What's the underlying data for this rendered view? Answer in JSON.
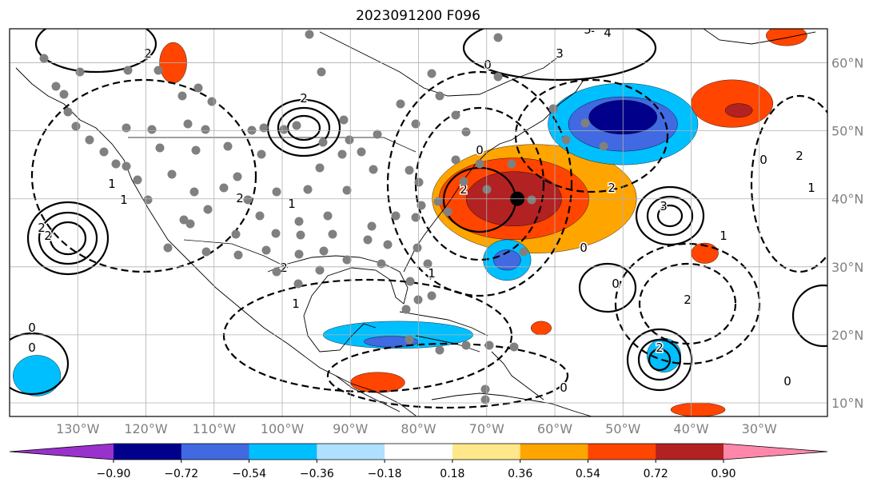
{
  "chart_data": {
    "type": "heatmap",
    "title": "2023091200 F096",
    "map": {
      "lon_range": [
        -140,
        -20
      ],
      "lat_range": [
        8,
        65
      ],
      "lon_ticks": [
        -130,
        -120,
        -110,
        -100,
        -90,
        -80,
        -70,
        -60,
        -50,
        -40,
        -30
      ],
      "lon_tick_labels": [
        "130°W",
        "120°W",
        "110°W",
        "100°W",
        "90°W",
        "80°W",
        "70°W",
        "60°W",
        "50°W",
        "40°W",
        "30°W"
      ],
      "lat_ticks": [
        10,
        20,
        30,
        40,
        50,
        60
      ],
      "lat_tick_labels": [
        "10°N",
        "20°N",
        "30°N",
        "40°N",
        "50°N",
        "60°N"
      ],
      "grid": true,
      "lat_label_side": "right"
    },
    "colorbar": {
      "orientation": "horizontal",
      "extend": "both",
      "levels": [
        -0.9,
        -0.72,
        -0.54,
        -0.36,
        -0.18,
        0.18,
        0.36,
        0.54,
        0.72,
        0.9
      ],
      "tick_labels": [
        "−0.90",
        "−0.72",
        "−0.54",
        "−0.36",
        "−0.18",
        "0.18",
        "0.36",
        "0.54",
        "0.72",
        "0.90"
      ],
      "colors": [
        "#9932cc",
        "#00008b",
        "#4169e1",
        "#00bfff",
        "#b0e0ff",
        "#ffffff",
        "#ffe88a",
        "#ffa500",
        "#ff4500",
        "#b22222",
        "#ff88aa"
      ]
    },
    "shaded_regions": [
      {
        "lon": -63,
        "lat": 40,
        "level": "0.36",
        "size": [
          15,
          8
        ]
      },
      {
        "lon": -66,
        "lat": 40,
        "level": "0.54",
        "size": [
          11,
          6
        ]
      },
      {
        "lon": -66,
        "lat": 40,
        "level": "0.72",
        "size": [
          7,
          4
        ]
      },
      {
        "lon": -50,
        "lat": 51,
        "level": "-0.36",
        "size": [
          11,
          6
        ]
      },
      {
        "lon": -50,
        "lat": 51,
        "level": "-0.54",
        "size": [
          8,
          4
        ]
      },
      {
        "lon": -50,
        "lat": 52,
        "level": "-0.72",
        "size": [
          5,
          2.5
        ]
      },
      {
        "lon": -67,
        "lat": 31,
        "level": "-0.36",
        "size": [
          3.5,
          3
        ]
      },
      {
        "lon": -67,
        "lat": 31,
        "level": "-0.54",
        "size": [
          2,
          1.5
        ]
      },
      {
        "lon": -83,
        "lat": 20,
        "level": "-0.36",
        "size": [
          11,
          2
        ]
      },
      {
        "lon": -84,
        "lat": 19,
        "level": "-0.54",
        "size": [
          4,
          0.8
        ]
      },
      {
        "lon": -34,
        "lat": 54,
        "level": "0.54",
        "size": [
          6,
          3.5
        ]
      },
      {
        "lon": -33,
        "lat": 53,
        "level": "0.72",
        "size": [
          2,
          1
        ]
      },
      {
        "lon": -116,
        "lat": 60,
        "level": "0.54",
        "size": [
          2,
          3
        ]
      },
      {
        "lon": -136,
        "lat": 14,
        "level": "-0.36",
        "size": [
          3.5,
          3
        ]
      },
      {
        "lon": -44,
        "lat": 17,
        "level": "-0.36",
        "size": [
          2.5,
          2.5
        ]
      },
      {
        "lon": -86,
        "lat": 13,
        "level": "0.54",
        "size": [
          4,
          1.5
        ]
      },
      {
        "lon": -38,
        "lat": 32,
        "level": "0.54",
        "size": [
          2,
          1.5
        ]
      },
      {
        "lon": -62,
        "lat": 21,
        "level": "0.54",
        "size": [
          1.5,
          1
        ]
      },
      {
        "lon": -26,
        "lat": 64,
        "level": "0.54",
        "size": [
          3,
          1.5
        ]
      },
      {
        "lon": -39,
        "lat": 9,
        "level": "0.54",
        "size": [
          4,
          1
        ]
      }
    ],
    "contour_labels": [
      "2",
      "3",
      "4",
      "5",
      "0",
      "2",
      "2",
      "2",
      "1",
      "1",
      "2",
      "2",
      "1",
      "1",
      "2",
      "0",
      "1",
      "2",
      "0",
      "0",
      "2",
      "0",
      "2",
      "1",
      "0",
      "3",
      "2",
      "1",
      "2",
      "0",
      "0",
      "0"
    ],
    "marker": {
      "lon": -65.5,
      "lat": 40.0
    }
  }
}
